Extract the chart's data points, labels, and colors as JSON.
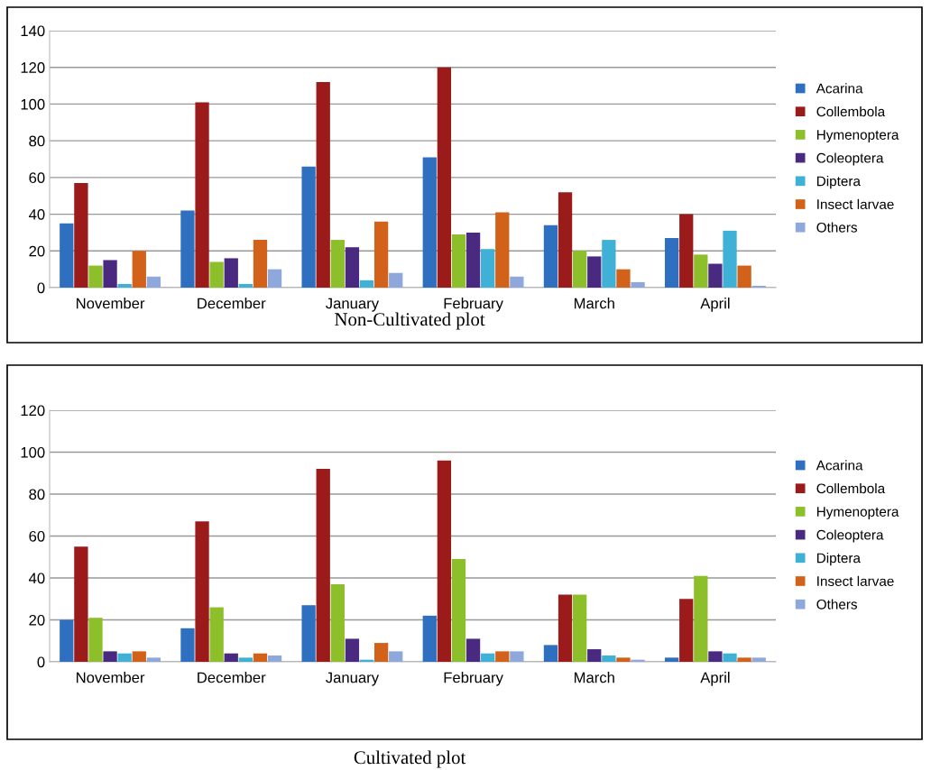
{
  "chart_data": [
    {
      "type": "bar",
      "title": "Non-Cultivated plot",
      "categories": [
        "November",
        "December",
        "January",
        "February",
        "March",
        "April"
      ],
      "ylim": [
        0,
        140
      ],
      "yticks": [
        0,
        20,
        40,
        60,
        80,
        100,
        120,
        140
      ],
      "grid": "y",
      "legend": "right",
      "series": [
        {
          "name": "Acarina",
          "color": "#2e6fc0",
          "values": [
            35,
            42,
            66,
            71,
            34,
            27
          ]
        },
        {
          "name": "Collembola",
          "color": "#9b1b1b",
          "values": [
            57,
            101,
            112,
            120,
            52,
            40
          ]
        },
        {
          "name": "Hymenoptera",
          "color": "#8cbf2a",
          "values": [
            12,
            14,
            26,
            29,
            20,
            18
          ]
        },
        {
          "name": "Coleoptera",
          "color": "#4a2a80",
          "values": [
            15,
            16,
            22,
            30,
            17,
            13
          ]
        },
        {
          "name": "Diptera",
          "color": "#3fb0d6",
          "values": [
            2,
            2,
            4,
            21,
            26,
            31
          ]
        },
        {
          "name": "Insect larvae",
          "color": "#d2621a",
          "values": [
            20,
            26,
            36,
            41,
            10,
            12
          ]
        },
        {
          "name": "Others",
          "color": "#8fa8db",
          "values": [
            6,
            10,
            8,
            6,
            3,
            1
          ]
        }
      ]
    },
    {
      "type": "bar",
      "title": "Cultivated plot",
      "categories": [
        "November",
        "December",
        "January",
        "February",
        "March",
        "April"
      ],
      "ylim": [
        0,
        120
      ],
      "yticks": [
        0,
        20,
        40,
        60,
        80,
        100,
        120
      ],
      "grid": "y",
      "legend": "right",
      "series": [
        {
          "name": "Acarina",
          "color": "#2e6fc0",
          "values": [
            20,
            16,
            27,
            22,
            8,
            2
          ]
        },
        {
          "name": "Collembola",
          "color": "#9b1b1b",
          "values": [
            55,
            67,
            92,
            96,
            32,
            30
          ]
        },
        {
          "name": "Hymenoptera",
          "color": "#8cbf2a",
          "values": [
            21,
            26,
            37,
            49,
            32,
            41
          ]
        },
        {
          "name": "Coleoptera",
          "color": "#4a2a80",
          "values": [
            5,
            4,
            11,
            11,
            6,
            5
          ]
        },
        {
          "name": "Diptera",
          "color": "#3fb0d6",
          "values": [
            4,
            2,
            1,
            4,
            3,
            4
          ]
        },
        {
          "name": "Insect larvae",
          "color": "#d2621a",
          "values": [
            5,
            4,
            9,
            5,
            2,
            2
          ]
        },
        {
          "name": "Others",
          "color": "#8fa8db",
          "values": [
            2,
            3,
            5,
            5,
            1,
            2
          ]
        }
      ]
    }
  ]
}
